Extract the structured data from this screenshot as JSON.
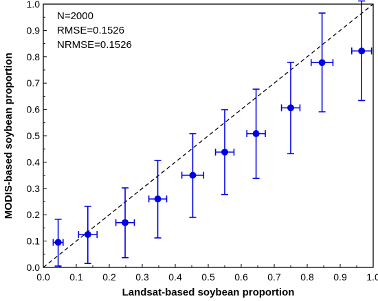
{
  "chart_data": {
    "type": "scatter",
    "xlabel": "Landsat-based soybean proportion",
    "ylabel": "MODIS-based soybean proportion",
    "xlim": [
      0.0,
      1.0
    ],
    "ylim": [
      0.0,
      1.0
    ],
    "xticks": [
      "0.0",
      "0.1",
      "0.2",
      "0.3",
      "0.4",
      "0.5",
      "0.6",
      "0.7",
      "0.8",
      "0.9",
      "1.0"
    ],
    "yticks": [
      "0.0",
      "0.1",
      "0.2",
      "0.3",
      "0.4",
      "0.5",
      "0.6",
      "0.7",
      "0.8",
      "0.9",
      "1.0"
    ],
    "grid": false,
    "reference_line": {
      "style": "dashed",
      "from": [
        0,
        0
      ],
      "to": [
        1,
        1
      ]
    },
    "annotations": [
      "N=2000",
      "RMSE=0.1526",
      "NRMSE=0.1526"
    ],
    "point_color": "#0000e6",
    "points": [
      {
        "x": 0.045,
        "y": 0.095,
        "x_err": 0.015,
        "y_lo": 0.005,
        "y_hi": 0.183
      },
      {
        "x": 0.135,
        "y": 0.125,
        "x_err": 0.028,
        "y_lo": 0.015,
        "y_hi": 0.232
      },
      {
        "x": 0.248,
        "y": 0.17,
        "x_err": 0.028,
        "y_lo": 0.037,
        "y_hi": 0.302
      },
      {
        "x": 0.347,
        "y": 0.26,
        "x_err": 0.027,
        "y_lo": 0.112,
        "y_hi": 0.406
      },
      {
        "x": 0.453,
        "y": 0.35,
        "x_err": 0.033,
        "y_lo": 0.19,
        "y_hi": 0.508
      },
      {
        "x": 0.55,
        "y": 0.438,
        "x_err": 0.028,
        "y_lo": 0.277,
        "y_hi": 0.599
      },
      {
        "x": 0.645,
        "y": 0.508,
        "x_err": 0.028,
        "y_lo": 0.338,
        "y_hi": 0.677
      },
      {
        "x": 0.75,
        "y": 0.606,
        "x_err": 0.028,
        "y_lo": 0.432,
        "y_hi": 0.779
      },
      {
        "x": 0.845,
        "y": 0.778,
        "x_err": 0.033,
        "y_lo": 0.591,
        "y_hi": 0.966
      },
      {
        "x": 0.965,
        "y": 0.822,
        "x_err": 0.03,
        "y_lo": 0.634,
        "y_hi": 1.012
      }
    ]
  }
}
